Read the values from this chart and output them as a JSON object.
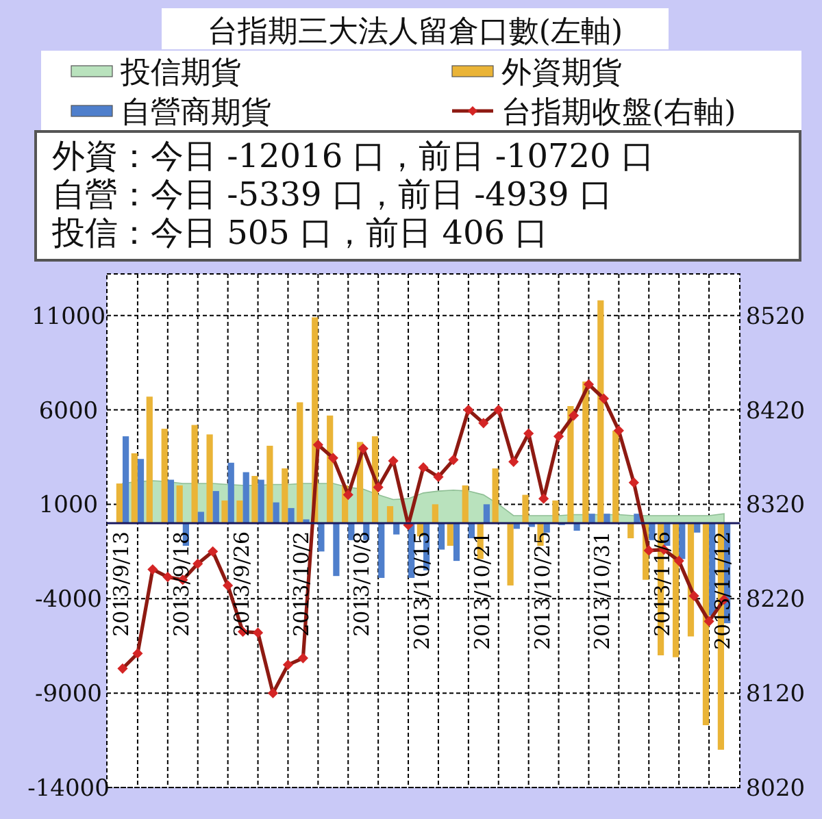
{
  "chart_data": {
    "type": "bar",
    "title": "台指期三大法人留倉口數(左軸)",
    "categories": [
      "2013/9/13",
      null,
      null,
      null,
      "2013/9/18",
      null,
      null,
      null,
      "2013/9/26",
      null,
      null,
      null,
      "2013/10/2",
      null,
      null,
      null,
      "2013/10/8",
      null,
      null,
      null,
      "2013/10/15",
      null,
      null,
      null,
      "2013/10/21",
      null,
      null,
      null,
      "2013/10/25",
      null,
      null,
      null,
      "2013/10/31",
      null,
      null,
      null,
      "2013/11/6",
      null,
      null,
      null,
      "2013/11/12"
    ],
    "series": [
      {
        "name": "投信期貨",
        "type": "area",
        "color": "#b9e2bd",
        "values": [
          2100,
          2200,
          2250,
          2200,
          2100,
          2100,
          2100,
          2050,
          2000,
          2000,
          2050,
          2050,
          2100,
          2100,
          2100,
          1900,
          1800,
          1500,
          1250,
          1300,
          1600,
          1700,
          1750,
          1700,
          1500,
          1000,
          400,
          400,
          400,
          400,
          450,
          450,
          450,
          450,
          400,
          400,
          400,
          400,
          400,
          400,
          500
        ]
      },
      {
        "name": "外資期貨",
        "color": "#eab437",
        "values": [
          2100,
          3700,
          6700,
          5000,
          2000,
          5200,
          4700,
          1200,
          1200,
          2500,
          4100,
          2900,
          6400,
          10900,
          5700,
          2000,
          4300,
          4600,
          900,
          null,
          -700,
          1000,
          -1200,
          2000,
          -1900,
          2900,
          -3300,
          1500,
          -1200,
          1200,
          6200,
          7500,
          11800,
          4900,
          -800,
          -3000,
          -7000,
          -7100,
          -6000,
          -10700,
          -12000
        ]
      },
      {
        "name": "自營商期貨",
        "color": "#4f7fcc",
        "values": [
          4600,
          3400,
          null,
          2300,
          -1200,
          600,
          1700,
          3200,
          2700,
          2300,
          1100,
          800,
          200,
          -1500,
          -2800,
          -900,
          -900,
          -2900,
          -600,
          -2900,
          -2500,
          -1400,
          -2000,
          -800,
          1000,
          null,
          -300,
          -200,
          -500,
          -100,
          -400,
          500,
          500,
          null,
          500,
          -900,
          -1200,
          -1900,
          -500,
          -4900,
          -5300
        ]
      },
      {
        "name": "台指期收盤(右軸)",
        "type": "line",
        "axis": "y2",
        "marker": "diamond",
        "color": "#8e1a12",
        "values": [
          8146,
          8162,
          8251,
          8243,
          8240,
          8257,
          8270,
          8234,
          8185,
          8184,
          8120,
          8150,
          8157,
          8383,
          8369,
          8330,
          8379,
          8338,
          8366,
          8298,
          8359,
          8349,
          8367,
          8420,
          8406,
          8420,
          8365,
          8395,
          8326,
          8392,
          8414,
          8447,
          8432,
          8398,
          8343,
          8271,
          8272,
          8260,
          8223,
          8196,
          8219
        ]
      }
    ],
    "ylim": [
      -14000,
      13200
    ],
    "yticks": [
      -14000,
      -9000,
      -4000,
      1000,
      6000,
      11000
    ],
    "y2lim": [
      8020,
      8564
    ],
    "y2ticks": [
      8020,
      8120,
      8220,
      8320,
      8420,
      8520
    ],
    "grid": true,
    "legend": "top",
    "annotations": [
      "外資：今日 -12016 口，前日 -10720 口",
      "自營：今日 -5339 口，前日 -4939 口",
      "投信：今日 505 口，前日 406 口"
    ]
  }
}
